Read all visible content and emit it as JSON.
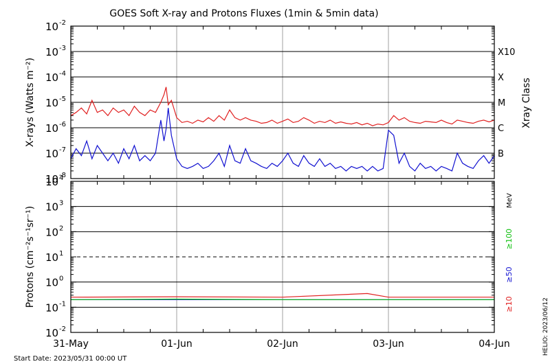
{
  "chart_data": {
    "type": "line",
    "title": "GOES Soft X-ray and Protons Fluxes   (1min & 5min data)",
    "x_ticks": [
      "31-May",
      "01-Jun",
      "02-Jun",
      "03-Jun",
      "04-Jun"
    ],
    "x_range": [
      "2023-05-31 00:00",
      "2023-06-04 00:00"
    ],
    "start_date_label": "Start Date: 2023/05/31 00:00 UT",
    "watermark": "HELIO: 2023/06/12",
    "panels": [
      {
        "id": "xray",
        "ylabel": "X-rays (Watts m⁻²)",
        "yscale": "log",
        "ylim": [
          1e-08,
          0.01
        ],
        "y_tick_labels": [
          {
            "exp": "-8",
            "value": 1e-08
          },
          {
            "exp": "-7",
            "value": 1e-07
          },
          {
            "exp": "-6",
            "value": 1e-06
          },
          {
            "exp": "-5",
            "value": 1e-05
          },
          {
            "exp": "-4",
            "value": 0.0001
          },
          {
            "exp": "-3",
            "value": 0.001
          },
          {
            "exp": "-2",
            "value": 0.01
          }
        ],
        "right_axis_title": "Xray Class",
        "classes": [
          {
            "label": "B",
            "value": 1e-07
          },
          {
            "label": "C",
            "value": 1e-06
          },
          {
            "label": "M",
            "value": 1e-05
          },
          {
            "label": "X",
            "value": 0.0001
          },
          {
            "label": "X10",
            "value": 0.001
          }
        ],
        "series": [
          {
            "color": "#e02020",
            "x": [
              0,
              0.05,
              0.1,
              0.15,
              0.2,
              0.25,
              0.3,
              0.35,
              0.4,
              0.45,
              0.5,
              0.55,
              0.6,
              0.65,
              0.7,
              0.75,
              0.8,
              0.85,
              0.88,
              0.9,
              0.92,
              0.95,
              1.0,
              1.05,
              1.1,
              1.15,
              1.2,
              1.25,
              1.3,
              1.35,
              1.4,
              1.45,
              1.5,
              1.55,
              1.6,
              1.65,
              1.7,
              1.75,
              1.8,
              1.85,
              1.9,
              1.95,
              2.0,
              2.05,
              2.1,
              2.15,
              2.2,
              2.25,
              2.3,
              2.35,
              2.4,
              2.45,
              2.5,
              2.55,
              2.6,
              2.65,
              2.7,
              2.75,
              2.8,
              2.85,
              2.9,
              2.95,
              3.0,
              3.05,
              3.1,
              3.15,
              3.2,
              3.25,
              3.3,
              3.35,
              3.4,
              3.45,
              3.5,
              3.55,
              3.6,
              3.65,
              3.7,
              3.75,
              3.8,
              3.85,
              3.9,
              3.95,
              4.0
            ],
            "y": [
              3e-06,
              4e-06,
              6e-06,
              3.5e-06,
              1.2e-05,
              4e-06,
              5e-06,
              3e-06,
              6e-06,
              4e-06,
              5e-06,
              3e-06,
              7e-06,
              4e-06,
              3e-06,
              5e-06,
              4e-06,
              1e-05,
              2e-05,
              4e-05,
              8e-06,
              1.2e-05,
              2.5e-06,
              1.6e-06,
              1.8e-06,
              1.5e-06,
              2e-06,
              1.7e-06,
              2.5e-06,
              1.8e-06,
              3e-06,
              2e-06,
              5e-06,
              2.5e-06,
              2e-06,
              2.5e-06,
              2e-06,
              1.8e-06,
              1.5e-06,
              1.6e-06,
              2e-06,
              1.5e-06,
              1.8e-06,
              2.2e-06,
              1.6e-06,
              1.8e-06,
              2.5e-06,
              2e-06,
              1.5e-06,
              1.8e-06,
              1.6e-06,
              2e-06,
              1.5e-06,
              1.7e-06,
              1.5e-06,
              1.4e-06,
              1.6e-06,
              1.3e-06,
              1.5e-06,
              1.2e-06,
              1.4e-06,
              1.3e-06,
              1.6e-06,
              3e-06,
              2e-06,
              2.5e-06,
              1.8e-06,
              1.6e-06,
              1.5e-06,
              1.8e-06,
              1.7e-06,
              1.6e-06,
              2e-06,
              1.6e-06,
              1.4e-06,
              2e-06,
              1.8e-06,
              1.6e-06,
              1.5e-06,
              1.8e-06,
              2e-06,
              1.7e-06,
              2e-06
            ]
          },
          {
            "color": "#1010d0",
            "x": [
              0,
              0.05,
              0.1,
              0.15,
              0.2,
              0.25,
              0.3,
              0.35,
              0.4,
              0.45,
              0.5,
              0.55,
              0.6,
              0.65,
              0.7,
              0.75,
              0.8,
              0.85,
              0.88,
              0.9,
              0.92,
              0.95,
              1.0,
              1.05,
              1.1,
              1.15,
              1.2,
              1.25,
              1.3,
              1.35,
              1.4,
              1.45,
              1.5,
              1.55,
              1.6,
              1.65,
              1.7,
              1.75,
              1.8,
              1.85,
              1.9,
              1.95,
              2.0,
              2.05,
              2.1,
              2.15,
              2.2,
              2.25,
              2.3,
              2.35,
              2.4,
              2.45,
              2.5,
              2.55,
              2.6,
              2.65,
              2.7,
              2.75,
              2.8,
              2.85,
              2.9,
              2.95,
              3.0,
              3.05,
              3.1,
              3.15,
              3.2,
              3.25,
              3.3,
              3.35,
              3.4,
              3.45,
              3.5,
              3.55,
              3.6,
              3.65,
              3.7,
              3.75,
              3.8,
              3.85,
              3.9,
              3.95,
              4.0
            ],
            "y": [
              6e-08,
              1.5e-07,
              8e-08,
              3e-07,
              6e-08,
              2e-07,
              1e-07,
              5e-08,
              1e-07,
              4e-08,
              1.5e-07,
              6e-08,
              2e-07,
              5e-08,
              8e-08,
              5e-08,
              1e-07,
              2e-06,
              3e-07,
              9e-07,
              6e-06,
              5e-07,
              6e-08,
              3e-08,
              2.5e-08,
              3e-08,
              4e-08,
              2.5e-08,
              3e-08,
              5e-08,
              1e-07,
              3e-08,
              2e-07,
              5e-08,
              4e-08,
              1.5e-07,
              5e-08,
              4e-08,
              3e-08,
              2.5e-08,
              4e-08,
              3e-08,
              5e-08,
              1e-07,
              4e-08,
              3e-08,
              8e-08,
              4e-08,
              3e-08,
              6e-08,
              3e-08,
              4e-08,
              2.5e-08,
              3e-08,
              2e-08,
              3e-08,
              2.5e-08,
              3e-08,
              2e-08,
              3e-08,
              2e-08,
              2.5e-08,
              8e-07,
              5e-07,
              4e-08,
              1e-07,
              3e-08,
              2e-08,
              4e-08,
              2.5e-08,
              3e-08,
              2e-08,
              3e-08,
              2.5e-08,
              2e-08,
              1e-07,
              4e-08,
              3e-08,
              2.5e-08,
              5e-08,
              8e-08,
              4e-08,
              8e-08
            ]
          }
        ]
      },
      {
        "id": "protons",
        "ylabel": "Protons (cm⁻²s⁻¹sr⁻¹)",
        "yscale": "log",
        "ylim": [
          0.01,
          10000.0
        ],
        "y_tick_labels": [
          {
            "exp": "-2",
            "value": 0.01
          },
          {
            "exp": "-1",
            "value": 0.1
          },
          {
            "exp": "0",
            "value": 1
          },
          {
            "exp": "1",
            "value": 10
          },
          {
            "exp": "2",
            "value": 100
          },
          {
            "exp": "3",
            "value": 1000
          },
          {
            "exp": "4",
            "value": 10000
          }
        ],
        "threshold_dashed": 10,
        "unit_label": "MeV",
        "legend": [
          {
            "label": "≥10",
            "color": "#e02020"
          },
          {
            "label": "≥50",
            "color": "#1010d0"
          },
          {
            "label": "≥100",
            "color": "#10c010"
          }
        ],
        "series": [
          {
            "name": "≥10",
            "color": "#e02020",
            "x": [
              0,
              1,
              2,
              2.8,
              3,
              4
            ],
            "y": [
              0.25,
              0.26,
              0.25,
              0.35,
              0.25,
              0.25
            ]
          },
          {
            "name": "≥50",
            "color": "#1010d0",
            "x": [
              0,
              1,
              2,
              3,
              4
            ],
            "y": [
              0.2,
              0.2,
              0.2,
              0.2,
              0.2
            ]
          },
          {
            "name": "≥100",
            "color": "#10c010",
            "x": [
              0,
              1,
              2,
              3,
              4
            ],
            "y": [
              0.2,
              0.21,
              0.2,
              0.2,
              0.2
            ]
          }
        ]
      }
    ]
  }
}
